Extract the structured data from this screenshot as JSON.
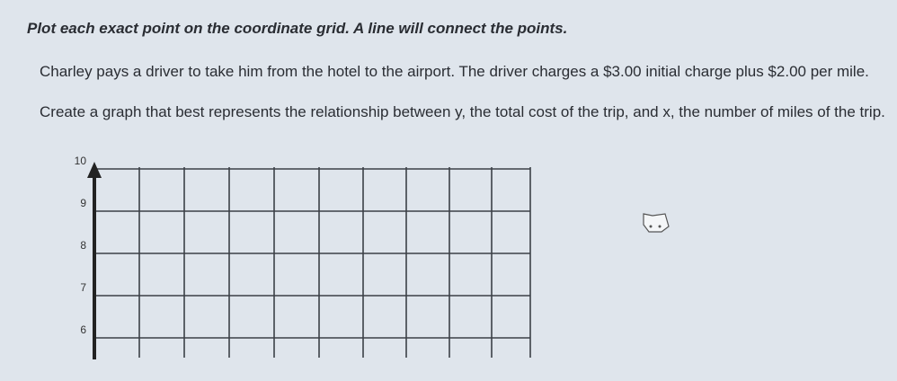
{
  "instruction": "Plot each exact point on the coordinate grid. A line will connect the points.",
  "problem": "Charley pays a driver to take him from the hotel to the airport. The driver charges a $3.00 initial charge plus $2.00 per mile.",
  "question": "Create a graph that best represents the relationship between y, the total cost of the trip, and x, the number of miles of the trip.",
  "graph": {
    "yticks": [
      10,
      9,
      8,
      7,
      6
    ]
  }
}
